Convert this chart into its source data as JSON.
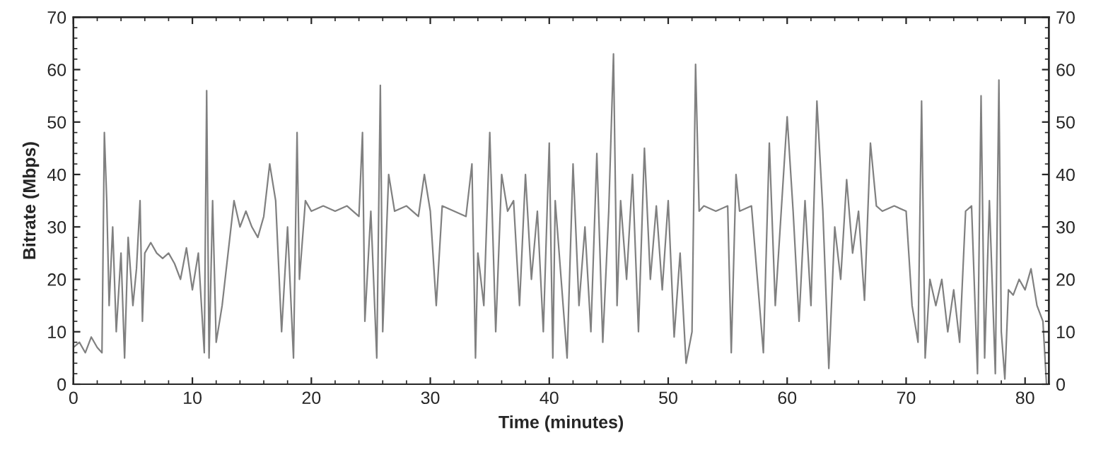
{
  "chart_data": {
    "type": "line",
    "xlabel": "Time (minutes)",
    "ylabel": "Bitrate (Mbps)",
    "xlim": [
      0,
      82
    ],
    "xticks": [
      0,
      10,
      20,
      30,
      40,
      50,
      60,
      70,
      80
    ],
    "ylim": [
      0,
      70
    ],
    "yticks": [
      0,
      10,
      20,
      30,
      40,
      50,
      60,
      70
    ],
    "y2lim": [
      0,
      70
    ],
    "y2ticks": [
      0,
      10,
      20,
      30,
      40,
      50,
      60,
      70
    ],
    "grid": false,
    "marker": "none",
    "line_style": "solid",
    "series": [
      {
        "color": "#808080",
        "x": [
          0,
          0.5,
          1,
          1.5,
          2,
          2.4,
          2.6,
          2.8,
          3,
          3.3,
          3.6,
          4,
          4.3,
          4.6,
          5,
          5.3,
          5.6,
          5.8,
          6,
          6.5,
          7,
          7.5,
          8,
          8.5,
          9,
          9.5,
          10,
          10.5,
          11,
          11.2,
          11.4,
          11.7,
          12,
          12.5,
          13,
          13.5,
          14,
          14.5,
          15,
          15.5,
          16,
          16.5,
          17,
          17.5,
          18,
          18.5,
          18.8,
          19,
          19.5,
          20,
          21,
          22,
          23,
          24,
          24.3,
          24.5,
          25,
          25.5,
          25.8,
          26,
          26.5,
          27,
          28,
          29,
          29.5,
          30,
          30.5,
          31,
          32,
          33,
          33.5,
          33.8,
          34,
          34.5,
          35,
          35.5,
          36,
          36.5,
          37,
          37.5,
          38,
          38.5,
          39,
          39.5,
          40,
          40.3,
          40.5,
          41,
          41.5,
          42,
          42.5,
          43,
          43.5,
          44,
          44.5,
          45,
          45.4,
          45.7,
          46,
          46.5,
          47,
          47.5,
          48,
          48.5,
          49,
          49.5,
          50,
          50.5,
          51,
          51.5,
          52,
          52.3,
          52.6,
          53,
          54,
          55,
          55.3,
          55.7,
          56,
          57,
          57.5,
          58,
          58.5,
          59,
          59.5,
          60,
          60.5,
          61,
          61.5,
          62,
          62.5,
          63,
          63.5,
          64,
          64.5,
          65,
          65.5,
          66,
          66.5,
          67,
          67.5,
          68,
          69,
          70,
          70.5,
          71,
          71.3,
          71.6,
          72,
          72.5,
          73,
          73.5,
          74,
          74.5,
          75,
          75.5,
          76,
          76.3,
          76.6,
          77,
          77.5,
          77.8,
          78,
          78.3,
          78.6,
          79,
          79.5,
          80,
          80.5,
          81,
          81.5,
          81.8
        ],
        "values": [
          7,
          8,
          6,
          9,
          7,
          6,
          48,
          35,
          15,
          30,
          10,
          25,
          5,
          28,
          15,
          22,
          35,
          12,
          25,
          27,
          25,
          24,
          25,
          23,
          20,
          26,
          18,
          25,
          6,
          56,
          5,
          35,
          8,
          15,
          25,
          35,
          30,
          33,
          30,
          28,
          32,
          42,
          35,
          10,
          30,
          5,
          48,
          20,
          35,
          33,
          34,
          33,
          34,
          32,
          48,
          12,
          33,
          5,
          57,
          10,
          40,
          33,
          34,
          32,
          40,
          33,
          15,
          34,
          33,
          32,
          42,
          5,
          25,
          15,
          48,
          10,
          40,
          33,
          35,
          15,
          40,
          20,
          33,
          10,
          46,
          5,
          35,
          20,
          5,
          42,
          15,
          30,
          10,
          44,
          8,
          33,
          63,
          15,
          35,
          20,
          40,
          10,
          45,
          20,
          34,
          18,
          35,
          9,
          25,
          4,
          10,
          61,
          33,
          34,
          33,
          34,
          6,
          40,
          33,
          34,
          20,
          6,
          46,
          15,
          33,
          51,
          33,
          12,
          35,
          15,
          54,
          33,
          3,
          30,
          20,
          39,
          25,
          33,
          16,
          46,
          34,
          33,
          34,
          33,
          15,
          8,
          54,
          5,
          20,
          15,
          20,
          10,
          18,
          8,
          33,
          34,
          2,
          55,
          5,
          35,
          2,
          58,
          10,
          1,
          18,
          17,
          20,
          18,
          22,
          15,
          12,
          0
        ]
      }
    ]
  }
}
